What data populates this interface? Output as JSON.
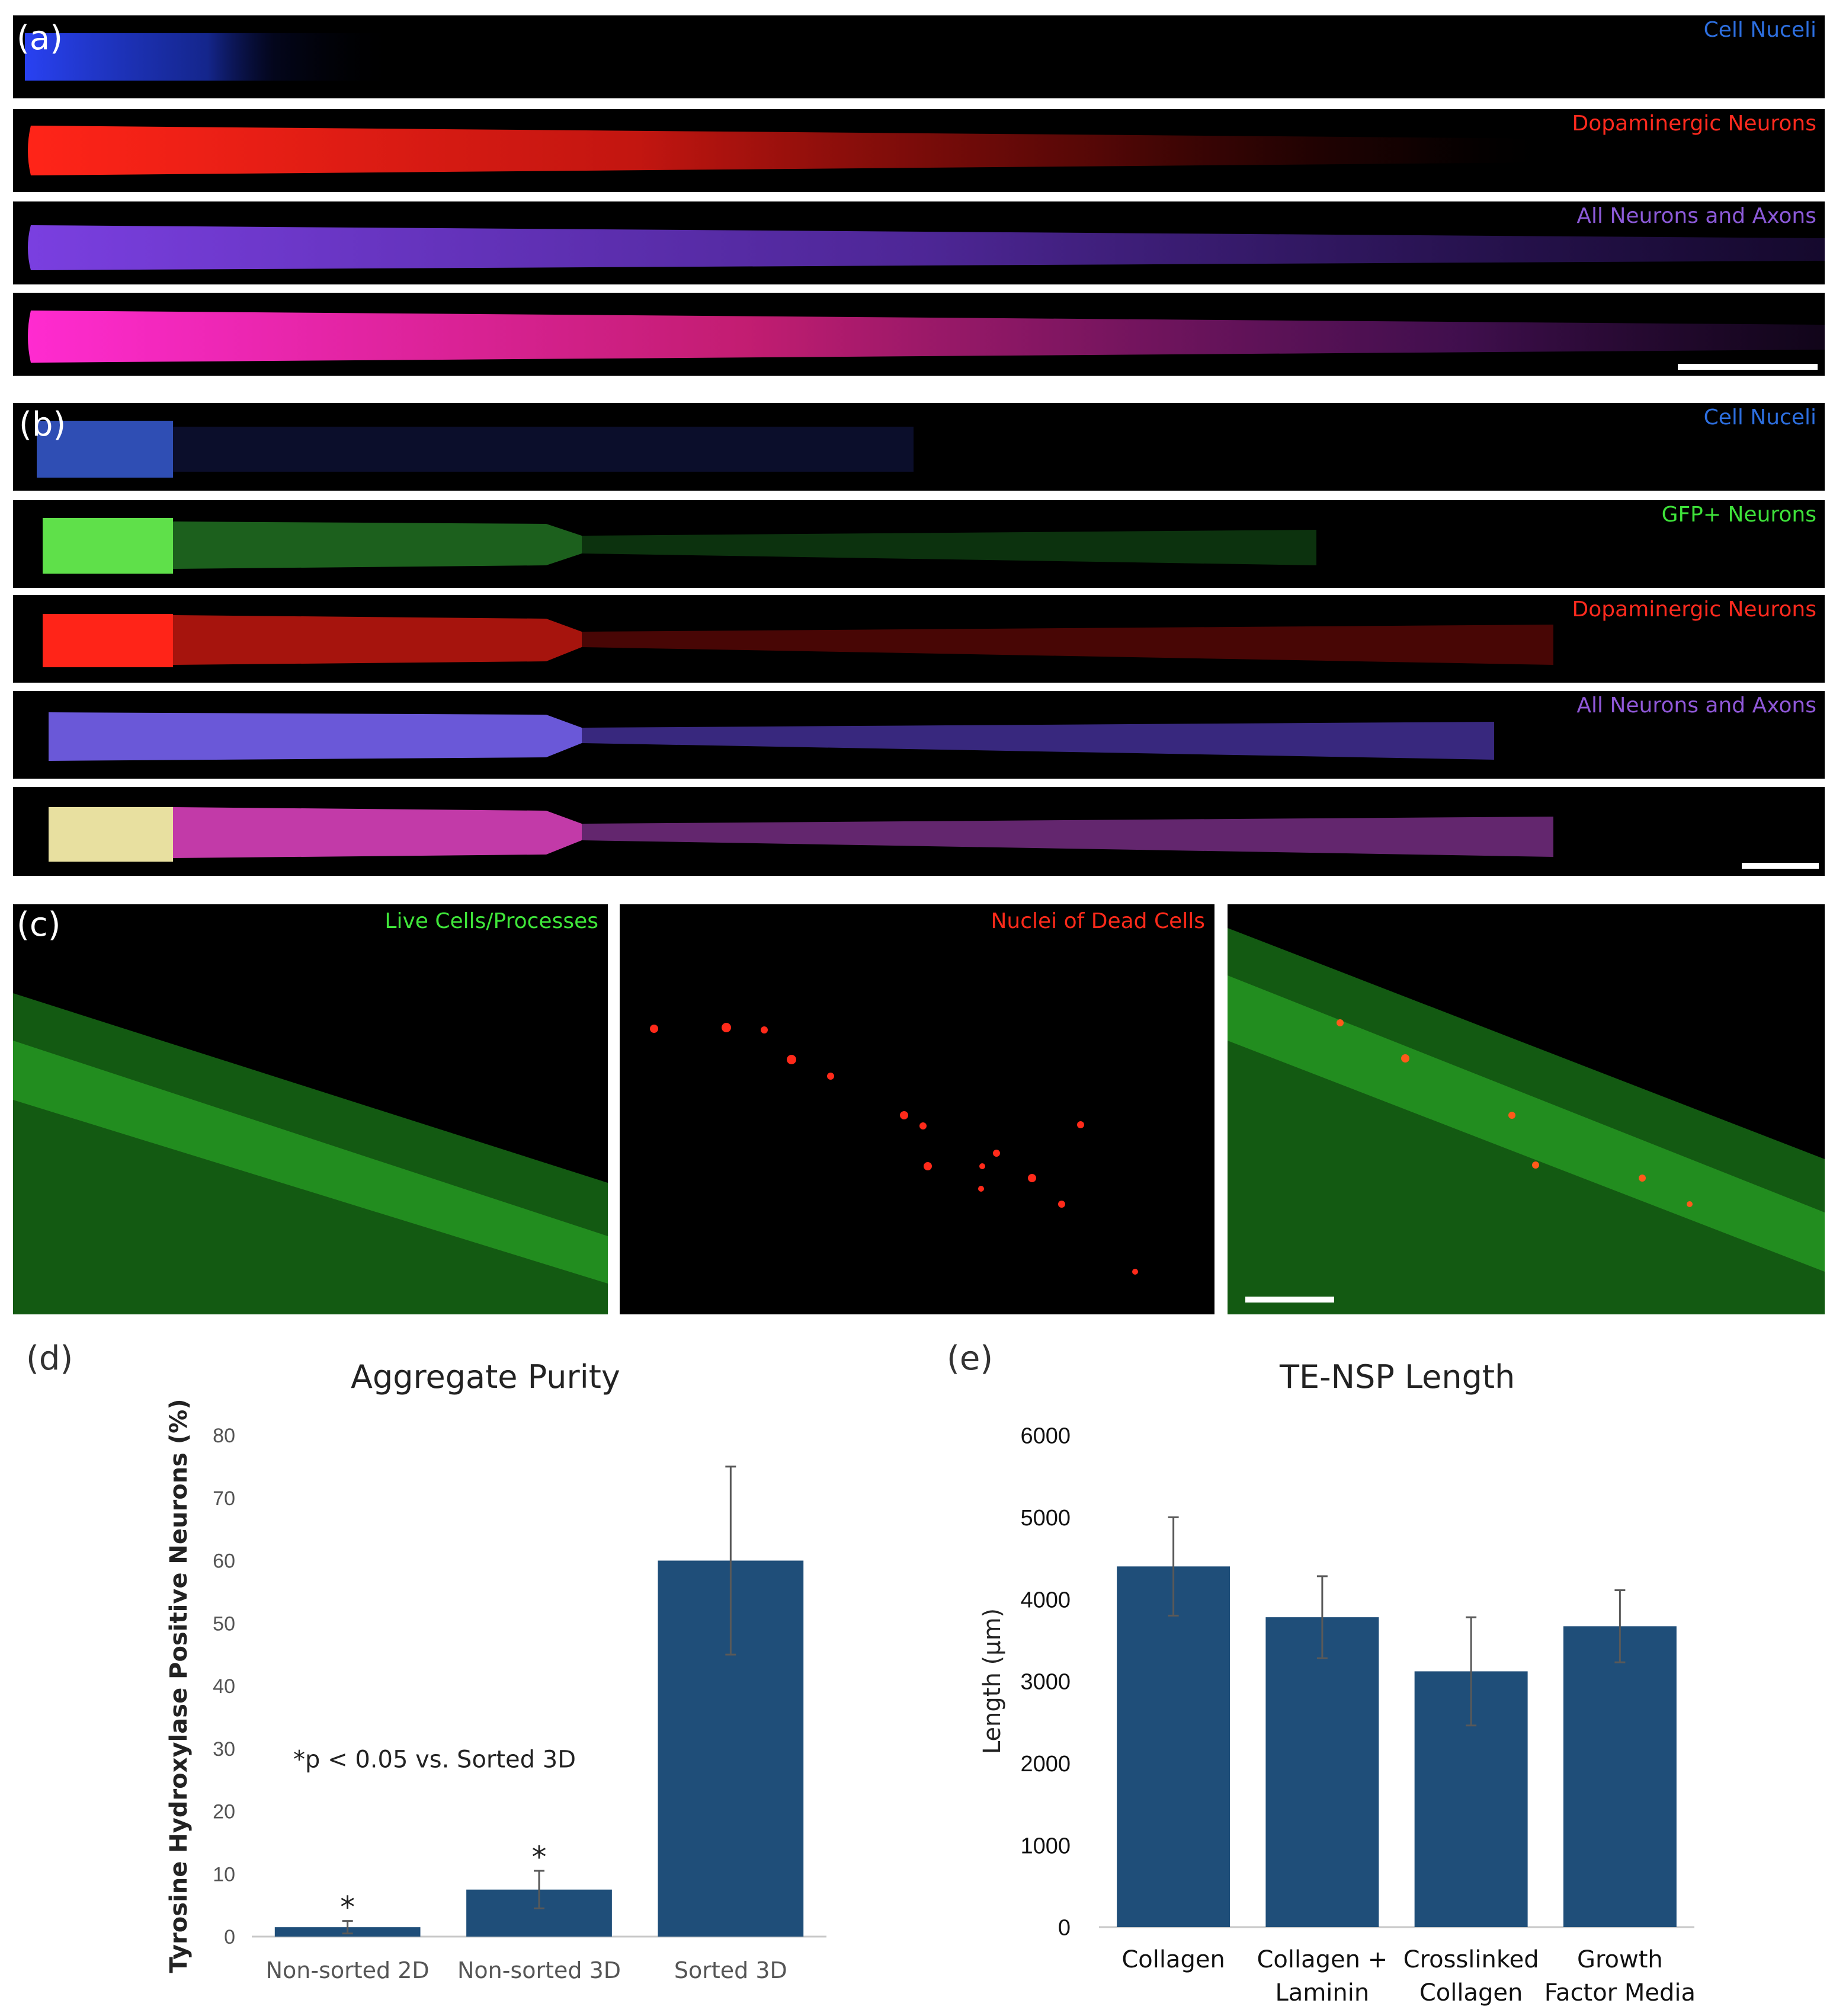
{
  "panel_a": {
    "letter": "(a)",
    "labels": {
      "nuclei": "Cell Nuceli",
      "dopaminergic": "Dopaminergic Neurons",
      "all_neurons": "All Neurons and Axons"
    },
    "colors": {
      "nuclei": "#2d5bd8",
      "dopaminergic": "#e8231e",
      "all_neurons": "#7f3fd6",
      "merge": "#e02a9a"
    }
  },
  "panel_b": {
    "letter": "(b)",
    "labels": {
      "nuclei": "Cell Nuceli",
      "gfp": "GFP+ Neurons",
      "dopaminergic": "Dopaminergic Neurons",
      "all_neurons": "All Neurons and Axons"
    },
    "colors": {
      "nuclei": "#2d5bd8",
      "gfp": "#3ee23a",
      "dopaminergic": "#e8231e",
      "all_neurons": "#8a5ae0",
      "merge": "#cf46c8"
    }
  },
  "panel_c": {
    "letter": "(c)",
    "labels": {
      "live": "Live Cells/Processes",
      "dead": "Nuclei of Dead Cells"
    },
    "colors": {
      "live": "#3fe63a",
      "dead": "#ff2a1a"
    }
  },
  "chart_data": [
    {
      "panel": "(d)",
      "type": "bar",
      "title": "Aggregate Purity",
      "ylabel": "Tyrosine Hydroxylase Positive Neurons (%)",
      "xlabel": "",
      "categories": [
        "Non-sorted 2D",
        "Non-sorted 3D",
        "Sorted 3D"
      ],
      "values": [
        1.5,
        7.5,
        60
      ],
      "errors": [
        1,
        3,
        15
      ],
      "significance": [
        "*",
        "*",
        ""
      ],
      "annotation": "*p < 0.05 vs. Sorted 3D",
      "ylim": [
        0,
        80
      ],
      "yticks": [
        0,
        10,
        20,
        30,
        40,
        50,
        60,
        70,
        80
      ],
      "bar_color": "#1f4e79",
      "grid": false
    },
    {
      "panel": "(e)",
      "type": "bar",
      "title": "TE-NSP Length",
      "ylabel": "Length (μm)",
      "xlabel": "",
      "categories": [
        [
          "Collagen"
        ],
        [
          "Collagen +",
          "Laminin"
        ],
        [
          "Crosslinked",
          "Collagen"
        ],
        [
          "Growth",
          "Factor Media"
        ]
      ],
      "values": [
        4400,
        3780,
        3120,
        3670
      ],
      "errors": [
        600,
        500,
        660,
        440
      ],
      "ylim": [
        0,
        6000
      ],
      "yticks": [
        0,
        1000,
        2000,
        3000,
        4000,
        5000,
        6000
      ],
      "bar_color": "#1f4e79",
      "grid": false
    }
  ]
}
